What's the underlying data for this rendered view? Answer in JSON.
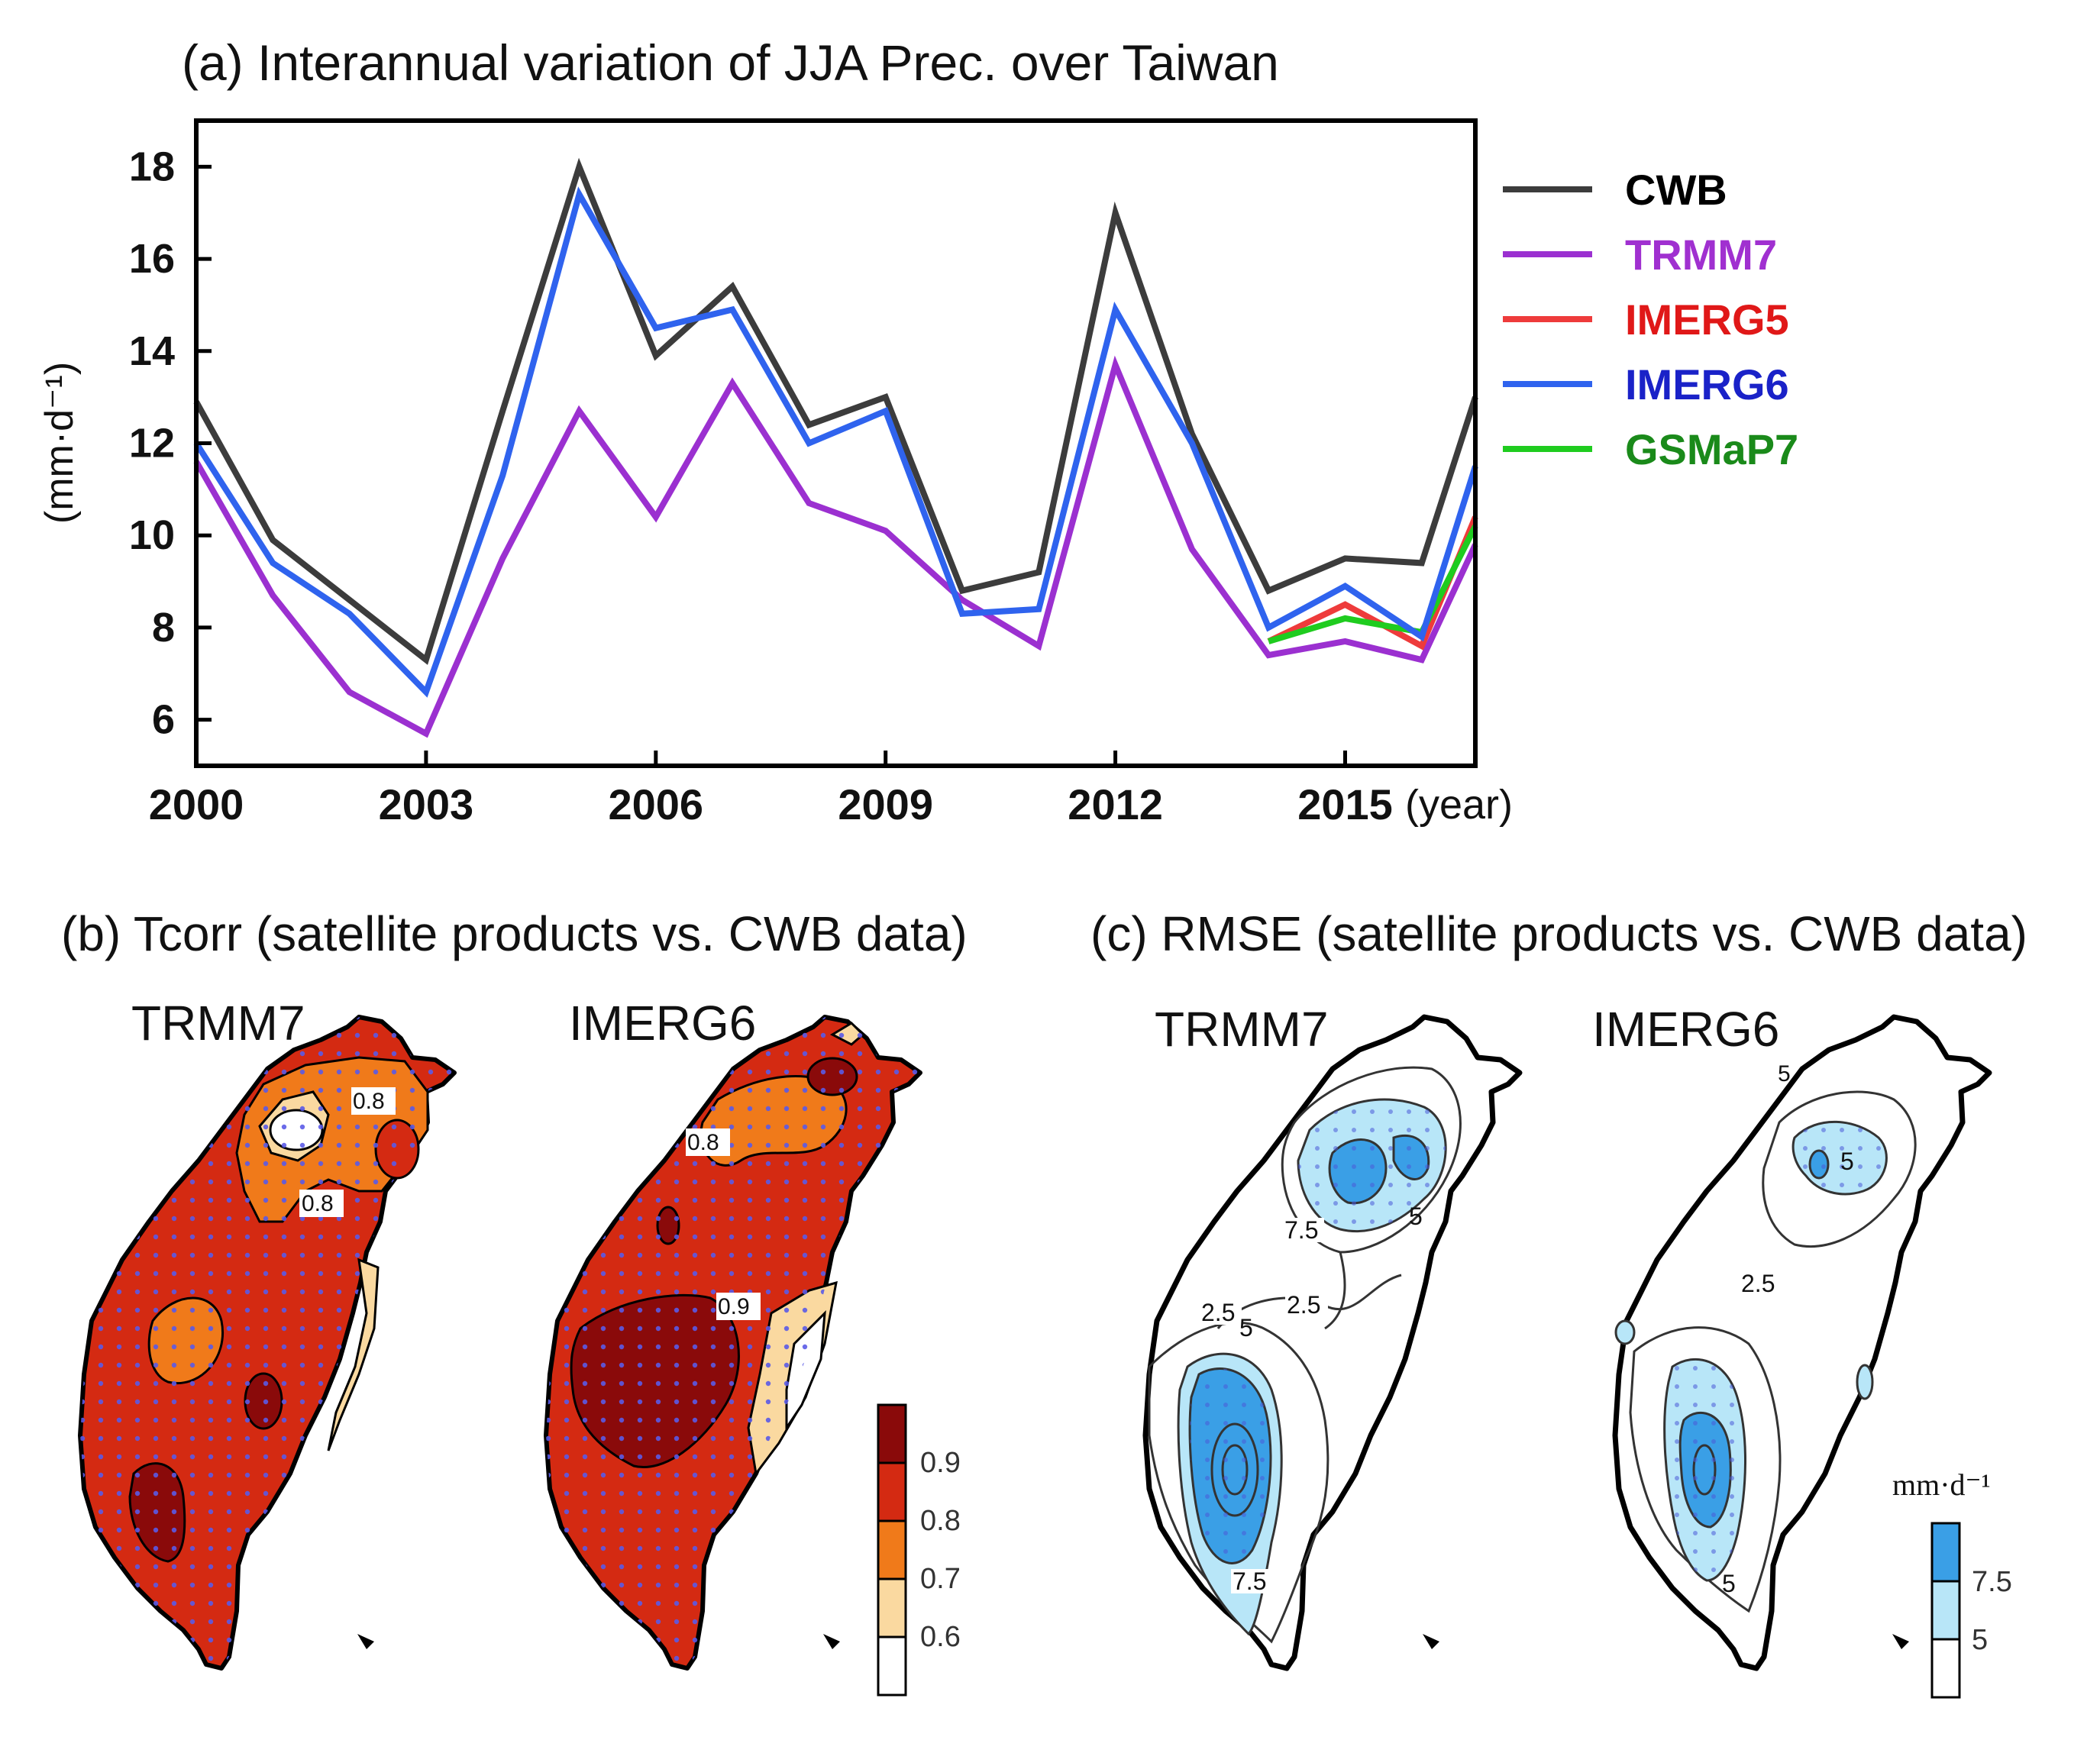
{
  "chart_data": [
    {
      "type": "line",
      "panel": "(a)",
      "title": "(a) Interannual variation of JJA Prec. over Taiwan",
      "xlabel": "(year)",
      "ylabel": "(mm·d⁻¹)",
      "xlim": [
        2000,
        2016.7
      ],
      "ylim": [
        5,
        19
      ],
      "xticks": [
        "2000",
        "2003",
        "2006",
        "2009",
        "2012",
        "2015"
      ],
      "yticks": [
        "6",
        "8",
        "10",
        "12",
        "14",
        "16",
        "18"
      ],
      "series": [
        {
          "name": "CWB",
          "color": "#3c3c3c",
          "x": [
            2000,
            2001,
            2002,
            2003,
            2004,
            2005,
            2006,
            2007,
            2008,
            2009,
            2010,
            2011,
            2012,
            2013,
            2014,
            2015,
            2016,
            2016.7
          ],
          "values": [
            12.9,
            9.9,
            8.6,
            7.3,
            12.7,
            18.0,
            13.9,
            15.4,
            12.4,
            13.0,
            8.8,
            9.2,
            17.0,
            12.2,
            8.8,
            9.5,
            9.4,
            13.0
          ]
        },
        {
          "name": "TRMM7",
          "color": "#9b30d0",
          "x": [
            2000,
            2001,
            2002,
            2003,
            2004,
            2005,
            2006,
            2007,
            2008,
            2009,
            2010,
            2011,
            2012,
            2013,
            2014,
            2015,
            2016,
            2016.7
          ],
          "values": [
            11.6,
            8.7,
            6.6,
            5.7,
            9.5,
            12.7,
            10.4,
            13.3,
            10.7,
            10.1,
            8.6,
            7.6,
            13.7,
            9.7,
            7.4,
            7.7,
            7.3,
            9.8
          ]
        },
        {
          "name": "IMERG5",
          "color": "#ee3b3b",
          "x": [
            2014,
            2015,
            2016,
            2016.7
          ],
          "values": [
            7.7,
            8.5,
            7.6,
            10.4
          ]
        },
        {
          "name": "IMERG6",
          "color": "#2f63ee",
          "x": [
            2000,
            2001,
            2002,
            2003,
            2004,
            2005,
            2006,
            2007,
            2008,
            2009,
            2010,
            2011,
            2012,
            2013,
            2014,
            2015,
            2016,
            2016.7
          ],
          "values": [
            12.0,
            9.4,
            8.3,
            6.6,
            11.3,
            17.4,
            14.5,
            14.9,
            12.0,
            12.7,
            8.3,
            8.4,
            14.9,
            12.0,
            8.0,
            8.9,
            7.8,
            11.5
          ]
        },
        {
          "name": "GSMaP7",
          "color": "#1fcc1f",
          "x": [
            2014,
            2015,
            2016,
            2016.7
          ],
          "values": [
            7.7,
            8.2,
            7.9,
            10.2
          ]
        }
      ],
      "legend_position": "right",
      "legend_text_colors": {
        "CWB": "#000000",
        "TRMM7": "#a030d0",
        "IMERG5": "#e01818",
        "IMERG6": "#1a22c8",
        "GSMaP7": "#1a8a1a"
      }
    },
    {
      "type": "map",
      "panel": "(b)",
      "title": "(b) Tcorr (satellite products vs. CWB data)",
      "maps": [
        {
          "label": "TRMM7"
        },
        {
          "label": "IMERG6"
        }
      ],
      "contour_labels": [
        "0.8",
        "0.8",
        "0.8",
        "0.9"
      ],
      "colorbar": {
        "ticks": [
          "0.9",
          "0.8",
          "0.7",
          "0.6"
        ],
        "colors": [
          "#8a0a0a",
          "#d42a12",
          "#f07a1a",
          "#fad9a0",
          "#ffffff"
        ]
      }
    },
    {
      "type": "map",
      "panel": "(c)",
      "title": "(c) RMSE (satellite products vs. CWB data)",
      "maps": [
        {
          "label": "TRMM7"
        },
        {
          "label": "IMERG6"
        }
      ],
      "contour_labels": [
        "7.5",
        "5",
        "2.5",
        "5",
        "2.5",
        "7.5",
        "5",
        "5",
        "2.5",
        "5"
      ],
      "colorbar": {
        "unit": "mm·d⁻¹",
        "ticks": [
          "7.5",
          "5"
        ],
        "colors": [
          "#3a9fe6",
          "#b8e6f8",
          "#ffffff"
        ]
      }
    }
  ]
}
